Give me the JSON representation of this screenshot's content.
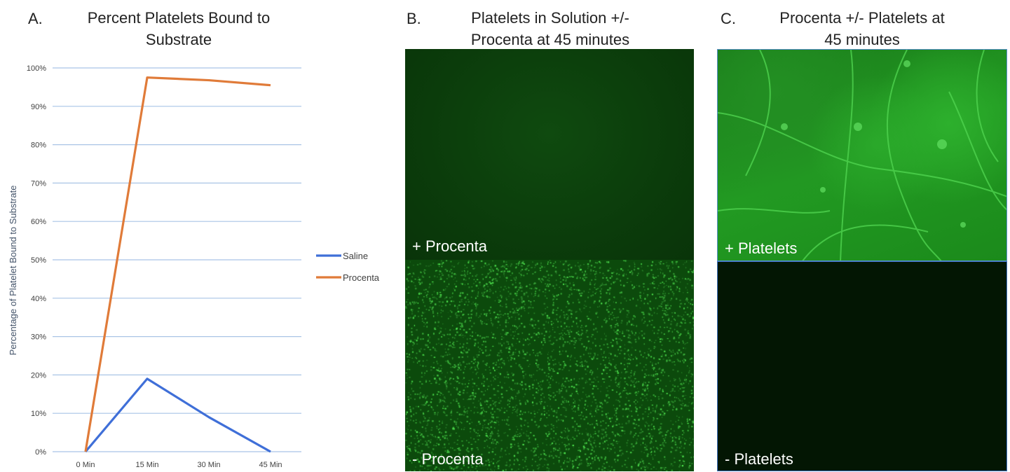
{
  "panels": {
    "a": {
      "letter": "A.",
      "title_line1": "Percent Platelets Bound to",
      "title_line2": "Substrate"
    },
    "b": {
      "letter": "B.",
      "title_line1": "Platelets in Solution +/-",
      "title_line2": "Procenta at 45 minutes",
      "top_label": "+ Procenta",
      "bottom_label": "- Procenta"
    },
    "c": {
      "letter": "C.",
      "title_line1": "Procenta +/- Platelets at",
      "title_line2": "45 minutes",
      "top_label": "+ Platelets",
      "bottom_label": "- Platelets"
    }
  },
  "chart_data": {
    "type": "line",
    "title": "Percent Platelets Bound to Substrate",
    "xlabel": "",
    "ylabel": "Percentage of Platelet Bound to Substrate",
    "categories": [
      "0 Min",
      "15 Min",
      "30 Min",
      "45 Min"
    ],
    "ylim": [
      0,
      100
    ],
    "yticks": [
      "0%",
      "10%",
      "20%",
      "30%",
      "40%",
      "50%",
      "60%",
      "70%",
      "80%",
      "90%",
      "100%"
    ],
    "grid": true,
    "legend_position": "right",
    "series": [
      {
        "name": "Saline",
        "values": [
          0,
          19,
          9,
          0
        ],
        "color": "#3f6fd8"
      },
      {
        "name": "Procenta",
        "values": [
          0,
          97.5,
          96.8,
          95.5
        ],
        "color": "#e07b39"
      }
    ]
  }
}
